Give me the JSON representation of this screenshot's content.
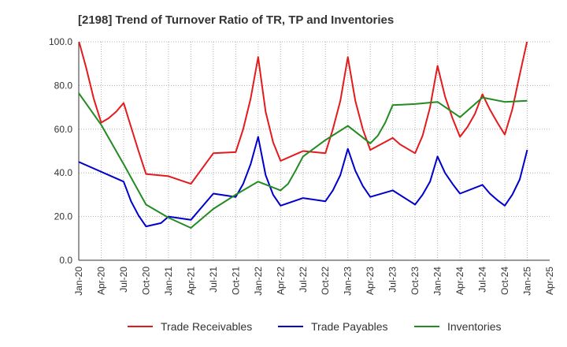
{
  "chart_data": {
    "type": "line",
    "title": "[2198]  Trend of Turnover Ratio of TR, TP and Inventories",
    "xlabel": "",
    "ylabel": "",
    "ylim": [
      0,
      100
    ],
    "yticks": [
      "0.0",
      "20.0",
      "40.0",
      "60.0",
      "80.0",
      "100.0"
    ],
    "xticks": [
      "Jan-20",
      "Apr-20",
      "Jul-20",
      "Oct-20",
      "Jan-21",
      "Apr-21",
      "Jul-21",
      "Oct-21",
      "Jan-22",
      "Apr-22",
      "Jul-22",
      "Oct-22",
      "Jan-23",
      "Apr-23",
      "Jul-23",
      "Oct-23",
      "Jan-24",
      "Apr-24",
      "Jul-24",
      "Oct-24",
      "Jan-25",
      "Apr-25"
    ],
    "grid": true,
    "legend_position": "bottom",
    "x_start": "2020-01",
    "x_end": "2025-04",
    "series": [
      {
        "name": "Trade Receivables",
        "color": "#e41a1c",
        "values": [
          [
            "2020-01",
            100.5
          ],
          [
            "2020-02",
            88
          ],
          [
            "2020-03",
            74
          ],
          [
            "2020-04",
            63
          ],
          [
            "2020-05",
            65
          ],
          [
            "2020-06",
            68
          ],
          [
            "2020-07",
            72
          ],
          [
            "2020-08",
            61
          ],
          [
            "2020-09",
            50
          ],
          [
            "2020-10",
            39.5
          ],
          [
            "2021-01",
            38.5
          ],
          [
            "2021-04",
            35
          ],
          [
            "2021-07",
            49
          ],
          [
            "2021-10",
            49.5
          ],
          [
            "2021-11",
            60
          ],
          [
            "2021-12",
            74
          ],
          [
            "2022-01",
            93
          ],
          [
            "2022-02",
            68
          ],
          [
            "2022-03",
            54
          ],
          [
            "2022-04",
            45.5
          ],
          [
            "2022-07",
            50
          ],
          [
            "2022-10",
            49
          ],
          [
            "2022-11",
            60
          ],
          [
            "2022-12",
            73
          ],
          [
            "2023-01",
            93
          ],
          [
            "2023-02",
            73
          ],
          [
            "2023-03",
            60
          ],
          [
            "2023-04",
            50.5
          ],
          [
            "2023-07",
            56
          ],
          [
            "2023-08",
            53
          ],
          [
            "2023-10",
            49
          ],
          [
            "2023-11",
            57
          ],
          [
            "2023-12",
            70
          ],
          [
            "2024-01",
            89
          ],
          [
            "2024-02",
            75
          ],
          [
            "2024-03",
            65
          ],
          [
            "2024-04",
            56.5
          ],
          [
            "2024-05",
            61
          ],
          [
            "2024-06",
            67
          ],
          [
            "2024-07",
            76
          ],
          [
            "2024-08",
            69
          ],
          [
            "2024-09",
            63
          ],
          [
            "2024-10",
            57.5
          ],
          [
            "2024-11",
            69
          ],
          [
            "2024-12",
            85
          ],
          [
            "2025-01",
            100.5
          ]
        ]
      },
      {
        "name": "Trade Payables",
        "color": "#0000cc",
        "values": [
          [
            "2020-01",
            45
          ],
          [
            "2020-04",
            40.5
          ],
          [
            "2020-07",
            36
          ],
          [
            "2020-08",
            27
          ],
          [
            "2020-09",
            20.5
          ],
          [
            "2020-10",
            15.5
          ],
          [
            "2020-12",
            17
          ],
          [
            "2021-01",
            20
          ],
          [
            "2021-04",
            18.5
          ],
          [
            "2021-07",
            30.5
          ],
          [
            "2021-10",
            29
          ],
          [
            "2021-11",
            35
          ],
          [
            "2021-12",
            44
          ],
          [
            "2022-01",
            56.5
          ],
          [
            "2022-02",
            39
          ],
          [
            "2022-03",
            30
          ],
          [
            "2022-04",
            25
          ],
          [
            "2022-07",
            28.5
          ],
          [
            "2022-10",
            27
          ],
          [
            "2022-11",
            32
          ],
          [
            "2022-12",
            39
          ],
          [
            "2023-01",
            51
          ],
          [
            "2023-02",
            41
          ],
          [
            "2023-03",
            34
          ],
          [
            "2023-04",
            29
          ],
          [
            "2023-07",
            32
          ],
          [
            "2023-10",
            25.5
          ],
          [
            "2023-11",
            30
          ],
          [
            "2023-12",
            36
          ],
          [
            "2024-01",
            47.5
          ],
          [
            "2024-02",
            40
          ],
          [
            "2024-03",
            35
          ],
          [
            "2024-04",
            30.5
          ],
          [
            "2024-07",
            34.5
          ],
          [
            "2024-08",
            30.5
          ],
          [
            "2024-09",
            27.5
          ],
          [
            "2024-10",
            25
          ],
          [
            "2024-11",
            30
          ],
          [
            "2024-12",
            37
          ],
          [
            "2025-01",
            50.5
          ]
        ]
      },
      {
        "name": "Inventories",
        "color": "#228b22",
        "values": [
          [
            "2020-01",
            76.5
          ],
          [
            "2020-04",
            62
          ],
          [
            "2020-07",
            44
          ],
          [
            "2020-10",
            25.5
          ],
          [
            "2021-01",
            19.5
          ],
          [
            "2021-04",
            14.8
          ],
          [
            "2021-07",
            23.5
          ],
          [
            "2021-10",
            30
          ],
          [
            "2022-01",
            36
          ],
          [
            "2022-04",
            32
          ],
          [
            "2022-05",
            35
          ],
          [
            "2022-06",
            41
          ],
          [
            "2022-07",
            47.5
          ],
          [
            "2022-10",
            55
          ],
          [
            "2023-01",
            61.5
          ],
          [
            "2023-04",
            53.5
          ],
          [
            "2023-05",
            57
          ],
          [
            "2023-06",
            63
          ],
          [
            "2023-07",
            71
          ],
          [
            "2023-10",
            71.5
          ],
          [
            "2024-01",
            72.5
          ],
          [
            "2024-04",
            65.5
          ],
          [
            "2024-07",
            74.5
          ],
          [
            "2024-10",
            72.5
          ],
          [
            "2025-01",
            73
          ]
        ]
      }
    ]
  }
}
